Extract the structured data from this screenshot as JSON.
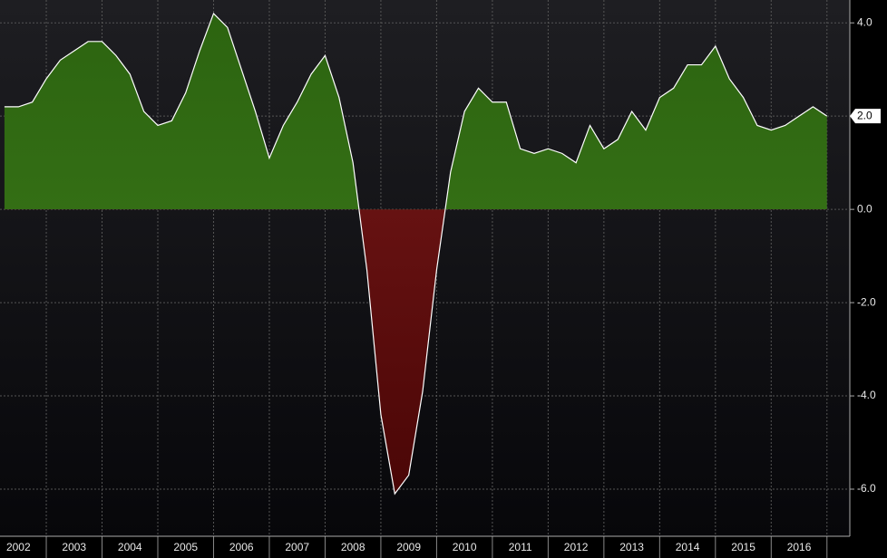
{
  "chart_data": {
    "type": "area",
    "x": [
      2002.25,
      2002.5,
      2002.75,
      2003,
      2003.25,
      2003.5,
      2003.75,
      2004,
      2004.25,
      2004.5,
      2004.75,
      2005,
      2005.25,
      2005.5,
      2005.75,
      2006,
      2006.25,
      2006.5,
      2006.75,
      2007,
      2007.25,
      2007.5,
      2007.75,
      2008,
      2008.25,
      2008.5,
      2008.75,
      2009,
      2009.25,
      2009.5,
      2009.75,
      2010,
      2010.25,
      2010.5,
      2010.75,
      2011,
      2011.25,
      2011.5,
      2011.75,
      2012,
      2012.25,
      2012.5,
      2012.75,
      2013,
      2013.25,
      2013.5,
      2013.75,
      2014,
      2014.25,
      2014.5,
      2014.75,
      2015,
      2015.25,
      2015.5,
      2015.75,
      2016,
      2016.25,
      2016.5,
      2016.75,
      2017
    ],
    "series": [
      {
        "positive_color": "#3f7d1c",
        "negative_color": "#7a1a1a",
        "line_color": "#ffffff",
        "values": [
          2.2,
          2.2,
          2.3,
          2.8,
          3.2,
          3.4,
          3.6,
          3.6,
          3.3,
          2.9,
          2.1,
          1.8,
          1.9,
          2.5,
          3.4,
          4.2,
          3.9,
          3.0,
          2.1,
          1.1,
          1.8,
          2.3,
          2.9,
          3.3,
          2.4,
          1.0,
          -1.3,
          -4.4,
          -6.1,
          -5.7,
          -3.9,
          -1.3,
          0.8,
          2.1,
          2.6,
          2.3,
          2.3,
          1.3,
          1.2,
          1.3,
          1.2,
          1.0,
          1.8,
          1.3,
          1.5,
          2.1,
          1.7,
          2.4,
          2.6,
          3.1,
          3.1,
          3.5,
          2.8,
          2.4,
          1.8,
          1.7,
          1.8,
          2.0,
          2.2,
          2.0
        ],
        "value_labels": [
          null,
          null,
          null,
          null,
          null,
          null,
          null,
          null,
          null,
          null,
          null,
          null,
          null,
          null,
          null,
          null,
          null,
          null,
          null,
          null,
          null,
          null,
          null,
          null,
          null,
          null,
          null,
          null,
          null,
          null,
          null,
          null,
          null,
          null,
          null,
          null,
          null,
          null,
          null,
          null,
          null,
          null,
          null,
          null,
          null,
          null,
          null,
          null,
          null,
          null,
          null,
          null,
          null,
          null,
          null,
          null,
          null,
          null,
          null,
          "2.0"
        ]
      }
    ],
    "xlim": [
      2002.17,
      2017.41
    ],
    "xticks": [
      {
        "value": 2002.5,
        "label": "2002"
      },
      {
        "value": 2003.5,
        "label": "2003"
      },
      {
        "value": 2004.5,
        "label": "2004"
      },
      {
        "value": 2005.5,
        "label": "2005"
      },
      {
        "value": 2006.5,
        "label": "2006"
      },
      {
        "value": 2007.5,
        "label": "2007"
      },
      {
        "value": 2008.5,
        "label": "2008"
      },
      {
        "value": 2009.5,
        "label": "2009"
      },
      {
        "value": 2010.5,
        "label": "2010"
      },
      {
        "value": 2011.5,
        "label": "2011"
      },
      {
        "value": 2012.5,
        "label": "2012"
      },
      {
        "value": 2013.5,
        "label": "2013"
      },
      {
        "value": 2014.5,
        "label": "2014"
      },
      {
        "value": 2015.5,
        "label": "2015"
      },
      {
        "value": 2016.5,
        "label": "2016"
      }
    ],
    "ylim": [
      -7.01,
      4.49
    ],
    "yticks": [
      {
        "value": -6,
        "label": "-6.0"
      },
      {
        "value": -4,
        "label": "-4.0"
      },
      {
        "value": -2,
        "label": "-2.0"
      },
      {
        "value": 0,
        "label": "0.0"
      },
      {
        "value": 2,
        "label": "2.0"
      },
      {
        "value": 4,
        "label": "4.0"
      }
    ],
    "grid": true
  }
}
